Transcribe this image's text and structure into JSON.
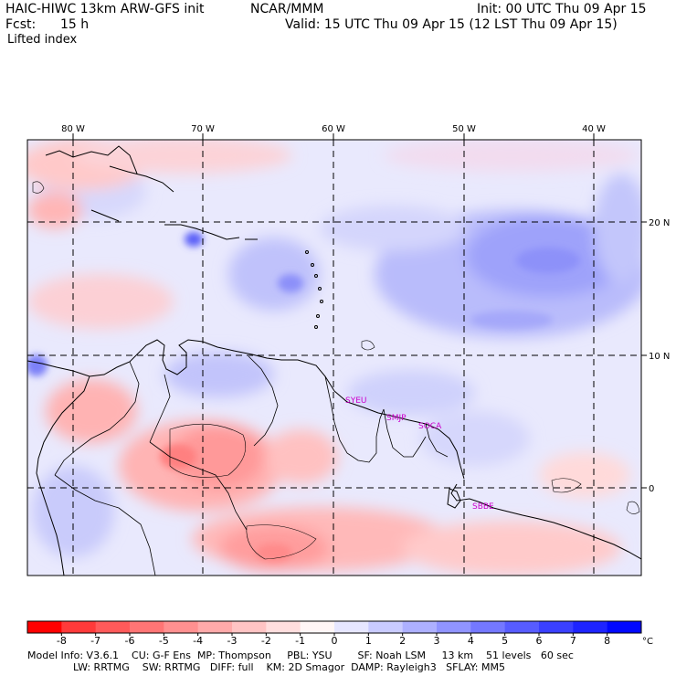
{
  "header": {
    "model": "HAIC-HIWC 13km ARW-GFS init",
    "org": "NCAR/MMM",
    "init": "Init: 00 UTC Thu 09 Apr 15",
    "fcst_label": "Fcst:",
    "fcst_value": "15 h",
    "valid": "Valid: 15 UTC Thu 09 Apr 15 (12 LST Thu 09 Apr 15)",
    "field": "Lifted index"
  },
  "map": {
    "lon_labels": [
      "80 W",
      "70 W",
      "60 W",
      "50 W",
      "40 W"
    ],
    "lat_labels": [
      "20 N",
      "10 N",
      "0"
    ],
    "stations": [
      "SYEU",
      "SMJP",
      "SOCA",
      "SBBE"
    ],
    "station_color": "#cc00cc"
  },
  "colorbar": {
    "labels": [
      "-8",
      "-7",
      "-6",
      "-5",
      "-4",
      "-3",
      "-2",
      "-1",
      "0",
      "1",
      "2",
      "3",
      "4",
      "5",
      "6",
      "7",
      "8"
    ],
    "unit": "°C",
    "colors": [
      "#ff0000",
      "#ff3a3a",
      "#ff5a5a",
      "#ff7575",
      "#ff9090",
      "#ffaaaa",
      "#ffc4c4",
      "#ffdede",
      "#fff6f6",
      "#e6e6ff",
      "#c9cbff",
      "#adb0ff",
      "#9094ff",
      "#7478ff",
      "#575cff",
      "#3a40ff",
      "#1e24ff",
      "#0008ff"
    ]
  },
  "footer": {
    "line1": "Model Info: V3.6.1    CU: G-F Ens  MP: Thompson     PBL: YSU        SF: Noah LSM     13 km    51 levels   60 sec",
    "line2": "LW: RRTMG    SW: RRTMG   DIFF: full    KM: 2D Smagor  DAMP: Rayleigh3   SFLAY: MM5"
  }
}
